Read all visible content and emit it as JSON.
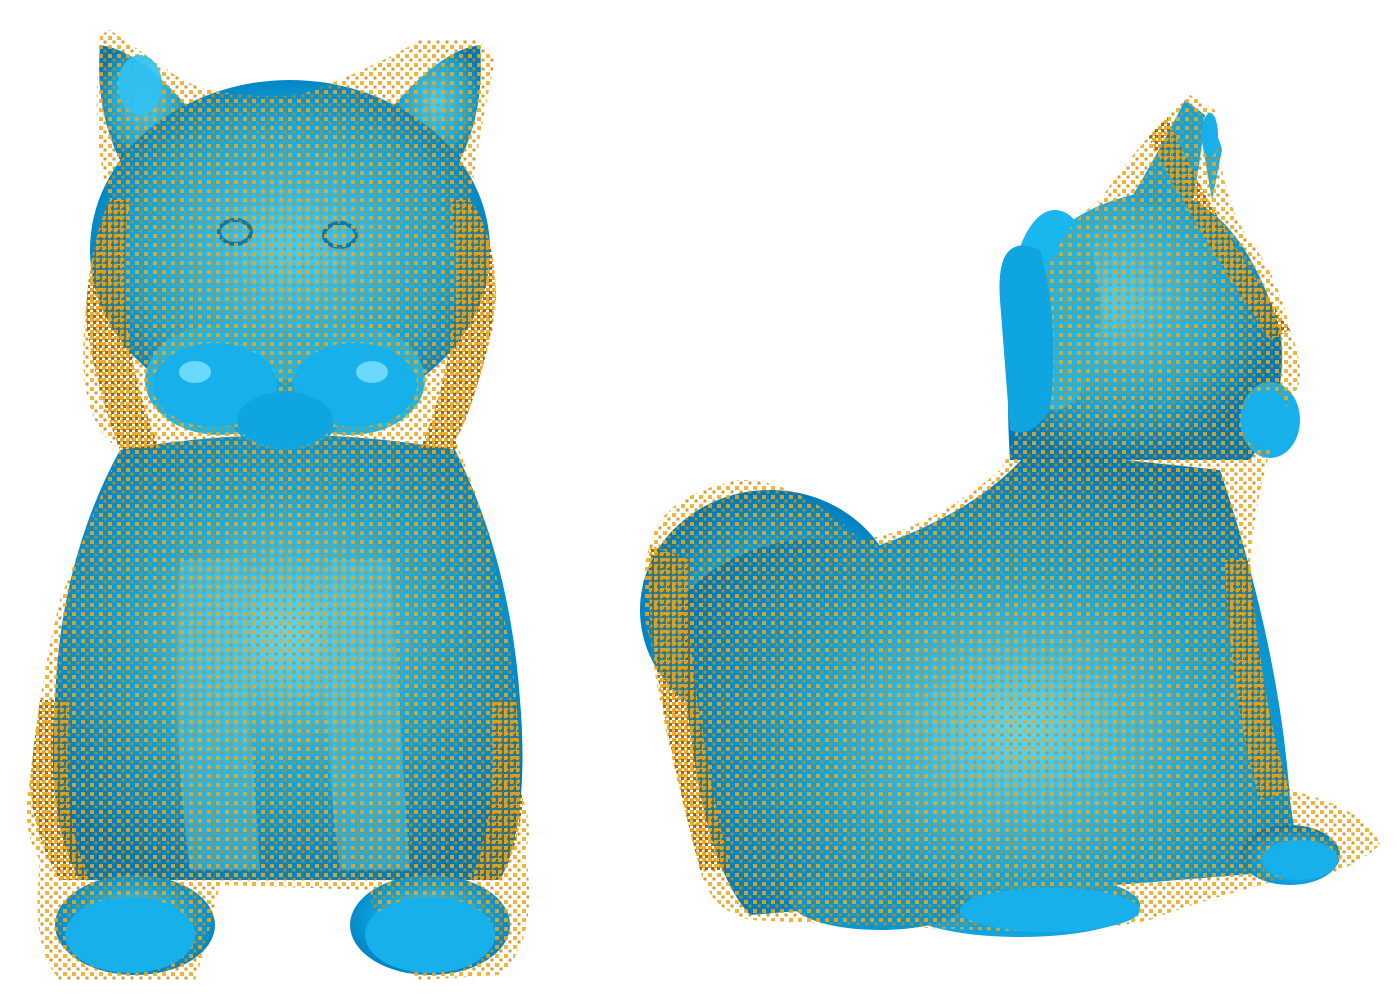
{
  "scene": {
    "background_color": "#ffffff",
    "mesh_color": "#0ea5e0",
    "mesh_highlight_color": "#57d9ff",
    "mesh_shadow_color": "#0079b8",
    "point_cloud_color": "#f0a818",
    "point_cloud_dark_color": "#9a6a10"
  },
  "views": [
    {
      "id": "front",
      "subject": "cat",
      "orientation": "front"
    },
    {
      "id": "side",
      "subject": "cat",
      "orientation": "side"
    }
  ]
}
